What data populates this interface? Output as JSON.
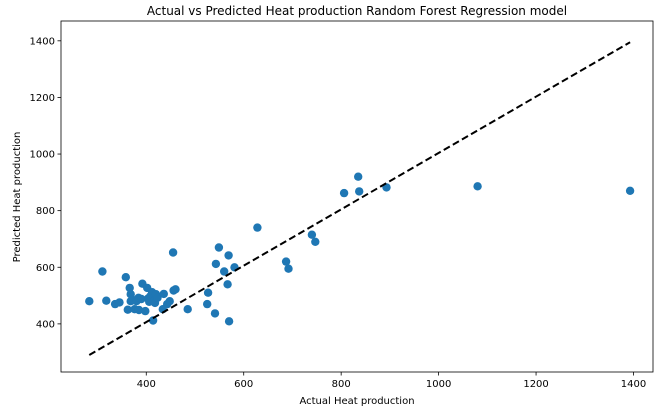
{
  "chart_data": {
    "type": "scatter",
    "title": "Actual vs Predicted Heat production Random Forest Regression model",
    "xlabel": "Actual Heat production",
    "ylabel": "Predicted Heat production",
    "xlim": [
      225,
      1440
    ],
    "ylim": [
      230,
      1470
    ],
    "xticks": [
      400,
      600,
      800,
      1000,
      1200,
      1400
    ],
    "yticks": [
      400,
      600,
      800,
      1000,
      1200,
      1400
    ],
    "grid": false,
    "point_color": "#1f77b4",
    "reference_line": {
      "style": "dashed",
      "color": "#000000",
      "from": [
        283,
        290
      ],
      "to": [
        1393,
        1395
      ]
    },
    "points": [
      [
        283,
        480
      ],
      [
        310,
        585
      ],
      [
        318,
        482
      ],
      [
        336,
        470
      ],
      [
        345,
        476
      ],
      [
        358,
        565
      ],
      [
        362,
        450
      ],
      [
        366,
        527
      ],
      [
        368,
        505
      ],
      [
        368,
        480
      ],
      [
        372,
        485
      ],
      [
        376,
        452
      ],
      [
        380,
        480
      ],
      [
        384,
        492
      ],
      [
        385,
        449
      ],
      [
        390,
        488
      ],
      [
        392,
        542
      ],
      [
        398,
        445
      ],
      [
        402,
        527
      ],
      [
        404,
        490
      ],
      [
        406,
        478
      ],
      [
        408,
        497
      ],
      [
        412,
        512
      ],
      [
        414,
        412
      ],
      [
        416,
        482
      ],
      [
        418,
        474
      ],
      [
        420,
        505
      ],
      [
        423,
        492
      ],
      [
        434,
        452
      ],
      [
        436,
        506
      ],
      [
        443,
        470
      ],
      [
        448,
        480
      ],
      [
        455,
        652
      ],
      [
        456,
        518
      ],
      [
        460,
        522
      ],
      [
        485,
        452
      ],
      [
        525,
        470
      ],
      [
        527,
        510
      ],
      [
        541,
        437
      ],
      [
        543,
        612
      ],
      [
        549,
        670
      ],
      [
        560,
        585
      ],
      [
        567,
        540
      ],
      [
        569,
        642
      ],
      [
        570,
        409
      ],
      [
        581,
        600
      ],
      [
        628,
        740
      ],
      [
        687,
        620
      ],
      [
        692,
        595
      ],
      [
        740,
        715
      ],
      [
        747,
        690
      ],
      [
        806,
        862
      ],
      [
        835,
        920
      ],
      [
        837,
        868
      ],
      [
        893,
        882
      ],
      [
        1080,
        886
      ],
      [
        1393,
        870
      ]
    ]
  }
}
